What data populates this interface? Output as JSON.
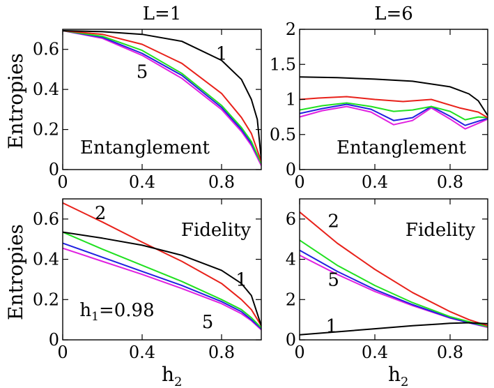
{
  "figure": {
    "xlabel": "h2",
    "ylabel_top": "Entropies",
    "ylabel_bottom": "Entropies"
  },
  "colors": {
    "1": "#000000",
    "2": "#e8211a",
    "3": "#20e020",
    "4": "#2020e0",
    "5": "#e020e0"
  },
  "chart_data": [
    {
      "id": "top-left",
      "type": "line",
      "title": "L=1",
      "ylabel": "Entropies",
      "xlabel": "",
      "annotation": "Entanglement",
      "xlim": [
        0,
        1
      ],
      "ylim": [
        0,
        0.7
      ],
      "xticks": [
        0,
        0.4,
        0.8
      ],
      "yticks": [
        0,
        0.2,
        0.4,
        0.6
      ],
      "xtick_labels": [
        "0",
        "0.4",
        "0.8"
      ],
      "ytick_labels": [
        "0",
        "0.2",
        "0.4",
        "0.6"
      ],
      "curve_labels": [
        {
          "text": "1",
          "x": 0.8,
          "y": 0.58
        },
        {
          "text": "5",
          "x": 0.4,
          "y": 0.49
        }
      ],
      "series": [
        {
          "key": "1",
          "x": [
            0,
            0.2,
            0.4,
            0.6,
            0.8,
            0.9,
            0.95,
            0.98,
            1.0
          ],
          "y": [
            0.693,
            0.688,
            0.675,
            0.64,
            0.545,
            0.45,
            0.35,
            0.25,
            0.05
          ]
        },
        {
          "key": "2",
          "x": [
            0,
            0.2,
            0.4,
            0.6,
            0.8,
            0.9,
            0.95,
            1.0
          ],
          "y": [
            0.693,
            0.675,
            0.625,
            0.53,
            0.38,
            0.26,
            0.18,
            0.04
          ]
        },
        {
          "key": "3",
          "x": [
            0,
            0.2,
            0.4,
            0.6,
            0.8,
            0.9,
            0.95,
            1.0
          ],
          "y": [
            0.693,
            0.665,
            0.595,
            0.48,
            0.32,
            0.21,
            0.14,
            0.03
          ]
        },
        {
          "key": "4",
          "x": [
            0,
            0.2,
            0.4,
            0.6,
            0.8,
            0.9,
            0.95,
            1.0
          ],
          "y": [
            0.693,
            0.66,
            0.58,
            0.47,
            0.31,
            0.2,
            0.13,
            0.03
          ]
        },
        {
          "key": "5",
          "x": [
            0,
            0.2,
            0.4,
            0.6,
            0.8,
            0.9,
            0.95,
            1.0
          ],
          "y": [
            0.693,
            0.655,
            0.57,
            0.455,
            0.3,
            0.19,
            0.12,
            0.02
          ]
        }
      ]
    },
    {
      "id": "top-right",
      "type": "line",
      "title": "L=6",
      "ylabel": "",
      "xlabel": "",
      "annotation": "Entanglement",
      "xlim": [
        0,
        1
      ],
      "ylim": [
        0,
        2
      ],
      "xticks": [
        0,
        0.4,
        0.8
      ],
      "yticks": [
        0,
        0.5,
        1,
        1.5,
        2
      ],
      "xtick_labels": [
        "0",
        "0.4",
        "0.8"
      ],
      "ytick_labels": [
        "0",
        "0.5",
        "1",
        "1.5",
        "2"
      ],
      "curve_labels": [],
      "series": [
        {
          "key": "1",
          "x": [
            0,
            0.2,
            0.4,
            0.6,
            0.8,
            0.9,
            0.95,
            1.0
          ],
          "y": [
            1.32,
            1.31,
            1.29,
            1.26,
            1.18,
            1.08,
            0.98,
            0.77
          ]
        },
        {
          "key": "2",
          "x": [
            0,
            0.1,
            0.25,
            0.4,
            0.55,
            0.7,
            0.85,
            0.95,
            1.0
          ],
          "y": [
            1.0,
            1.02,
            1.04,
            1.0,
            0.97,
            1.0,
            0.88,
            0.82,
            0.74
          ]
        },
        {
          "key": "3",
          "x": [
            0,
            0.12,
            0.25,
            0.38,
            0.5,
            0.6,
            0.7,
            0.8,
            0.88,
            0.95,
            1.0
          ],
          "y": [
            0.85,
            0.91,
            0.95,
            0.9,
            0.83,
            0.85,
            0.9,
            0.83,
            0.71,
            0.75,
            0.74
          ]
        },
        {
          "key": "4",
          "x": [
            0,
            0.12,
            0.25,
            0.38,
            0.5,
            0.6,
            0.7,
            0.8,
            0.88,
            0.95,
            1.0
          ],
          "y": [
            0.8,
            0.87,
            0.93,
            0.86,
            0.7,
            0.74,
            0.9,
            0.76,
            0.63,
            0.69,
            0.73
          ]
        },
        {
          "key": "5",
          "x": [
            0,
            0.12,
            0.25,
            0.38,
            0.5,
            0.6,
            0.7,
            0.8,
            0.88,
            0.95,
            1.0
          ],
          "y": [
            0.75,
            0.84,
            0.9,
            0.82,
            0.64,
            0.7,
            0.88,
            0.72,
            0.58,
            0.66,
            0.72
          ]
        }
      ]
    },
    {
      "id": "bottom-left",
      "type": "line",
      "title": "",
      "ylabel": "Entropies",
      "xlabel": "h2",
      "annotation": "Fidelity",
      "annotation2": "h1=0.98",
      "xlim": [
        0,
        1
      ],
      "ylim": [
        0,
        0.7
      ],
      "xticks": [
        0,
        0.4,
        0.8
      ],
      "yticks": [
        0,
        0.2,
        0.4,
        0.6
      ],
      "xtick_labels": [
        "0",
        "0.4",
        "0.8"
      ],
      "ytick_labels": [
        "0",
        "0.2",
        "0.4",
        "0.6"
      ],
      "curve_labels": [
        {
          "text": "2",
          "x": 0.19,
          "y": 0.63
        },
        {
          "text": "1",
          "x": 0.9,
          "y": 0.3
        },
        {
          "text": "5",
          "x": 0.73,
          "y": 0.09
        }
      ],
      "series": [
        {
          "key": "1",
          "x": [
            0,
            0.2,
            0.4,
            0.6,
            0.8,
            0.9,
            0.95,
            1.0
          ],
          "y": [
            0.535,
            0.505,
            0.47,
            0.42,
            0.345,
            0.28,
            0.22,
            0.07
          ]
        },
        {
          "key": "2",
          "x": [
            0,
            0.2,
            0.4,
            0.6,
            0.8,
            0.9,
            0.95,
            1.0
          ],
          "y": [
            0.68,
            0.585,
            0.485,
            0.39,
            0.28,
            0.2,
            0.15,
            0.07
          ]
        },
        {
          "key": "3",
          "x": [
            0,
            0.2,
            0.4,
            0.6,
            0.8,
            0.9,
            0.95,
            1.0
          ],
          "y": [
            0.535,
            0.45,
            0.37,
            0.29,
            0.2,
            0.15,
            0.11,
            0.06
          ]
        },
        {
          "key": "4",
          "x": [
            0,
            0.2,
            0.4,
            0.6,
            0.8,
            0.9,
            0.95,
            1.0
          ],
          "y": [
            0.48,
            0.41,
            0.34,
            0.27,
            0.19,
            0.14,
            0.1,
            0.055
          ]
        },
        {
          "key": "5",
          "x": [
            0,
            0.2,
            0.4,
            0.6,
            0.8,
            0.9,
            0.95,
            1.0
          ],
          "y": [
            0.455,
            0.39,
            0.325,
            0.255,
            0.18,
            0.13,
            0.095,
            0.05
          ]
        }
      ]
    },
    {
      "id": "bottom-right",
      "type": "line",
      "title": "",
      "ylabel": "",
      "xlabel": "h2",
      "annotation": "Fidelity",
      "xlim": [
        0,
        1
      ],
      "ylim": [
        0,
        7
      ],
      "xticks": [
        0,
        0.4,
        0.8
      ],
      "yticks": [
        0,
        2,
        4,
        6
      ],
      "xtick_labels": [
        "0",
        "0.4",
        "0.8"
      ],
      "ytick_labels": [
        "0",
        "2",
        "4",
        "6"
      ],
      "curve_labels": [
        {
          "text": "2",
          "x": 0.18,
          "y": 5.9
        },
        {
          "text": "5",
          "x": 0.18,
          "y": 3.0
        },
        {
          "text": "1",
          "x": 0.17,
          "y": 0.7
        }
      ],
      "series": [
        {
          "key": "1",
          "x": [
            0,
            0.2,
            0.4,
            0.6,
            0.8,
            0.9,
            1.0
          ],
          "y": [
            0.25,
            0.4,
            0.55,
            0.7,
            0.82,
            0.85,
            0.8
          ]
        },
        {
          "key": "2",
          "x": [
            0,
            0.2,
            0.4,
            0.6,
            0.8,
            0.9,
            1.0
          ],
          "y": [
            6.35,
            4.8,
            3.5,
            2.35,
            1.4,
            1.0,
            0.7
          ]
        },
        {
          "key": "3",
          "x": [
            0,
            0.2,
            0.4,
            0.6,
            0.8,
            0.9,
            1.0
          ],
          "y": [
            4.95,
            3.7,
            2.7,
            1.85,
            1.15,
            0.9,
            0.65
          ]
        },
        {
          "key": "4",
          "x": [
            0,
            0.2,
            0.4,
            0.6,
            0.8,
            0.9,
            1.0
          ],
          "y": [
            4.45,
            3.4,
            2.5,
            1.75,
            1.1,
            0.85,
            0.65
          ]
        },
        {
          "key": "5",
          "x": [
            0,
            0.2,
            0.4,
            0.6,
            0.8,
            0.9,
            1.0
          ],
          "y": [
            4.2,
            3.25,
            2.4,
            1.7,
            1.08,
            0.85,
            0.62
          ]
        }
      ]
    }
  ]
}
